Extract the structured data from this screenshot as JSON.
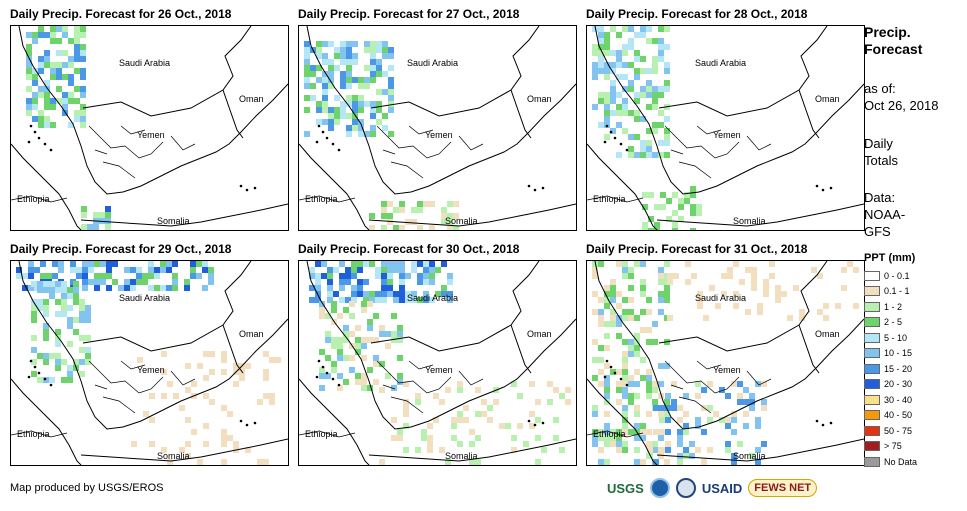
{
  "panels": [
    {
      "title": "Daily Precip. Forecast for 26 Oct., 2018",
      "day": "26"
    },
    {
      "title": "Daily Precip. Forecast for 27 Oct., 2018",
      "day": "27"
    },
    {
      "title": "Daily Precip. Forecast for 28 Oct., 2018",
      "day": "28"
    },
    {
      "title": "Daily Precip. Forecast for 29 Oct., 2018",
      "day": "29"
    },
    {
      "title": "Daily Precip. Forecast for 30 Oct., 2018",
      "day": "30"
    },
    {
      "title": "Daily Precip. Forecast for 31 Oct., 2018",
      "day": "31"
    }
  ],
  "map_labels": {
    "saudi": "Saudi Arabia",
    "oman": "Oman",
    "yemen": "Yemen",
    "ethiopia": "Ethiopia",
    "somalia": "Somalia"
  },
  "sidebar": {
    "title_line1": "Precip.",
    "title_line2": "Forecast",
    "asof_line1": "as of:",
    "asof_line2": "Oct 26, 2018",
    "daily_line1": "Daily",
    "daily_line2": "Totals",
    "data_line1": "Data:",
    "data_line2": "NOAA-",
    "data_line3": "GFS"
  },
  "legend": {
    "title": "PPT (mm)",
    "items": [
      {
        "label": "0 - 0.1",
        "color": "#ffffff"
      },
      {
        "label": "0.1 - 1",
        "color": "#f2dfc0"
      },
      {
        "label": "1 - 2",
        "color": "#b8f0b0"
      },
      {
        "label": "2 - 5",
        "color": "#6ed36a"
      },
      {
        "label": "5 - 10",
        "color": "#b4e6f5"
      },
      {
        "label": "10 - 15",
        "color": "#82c3f0"
      },
      {
        "label": "15 - 20",
        "color": "#4b99e6"
      },
      {
        "label": "20 - 30",
        "color": "#1f5fdc"
      },
      {
        "label": "30 - 40",
        "color": "#fbe08c"
      },
      {
        "label": "40 - 50",
        "color": "#f59b0a"
      },
      {
        "label": "50 - 75",
        "color": "#e63214"
      },
      {
        "label": "> 75",
        "color": "#a01e1e"
      },
      {
        "label": "No Data",
        "color": "#9a9a9a"
      }
    ]
  },
  "footer": {
    "credit": "Map produced by USGS/EROS",
    "logo_usgs": "USGS",
    "logo_usaid": "USAID",
    "logo_fews": "FEWS NET"
  }
}
